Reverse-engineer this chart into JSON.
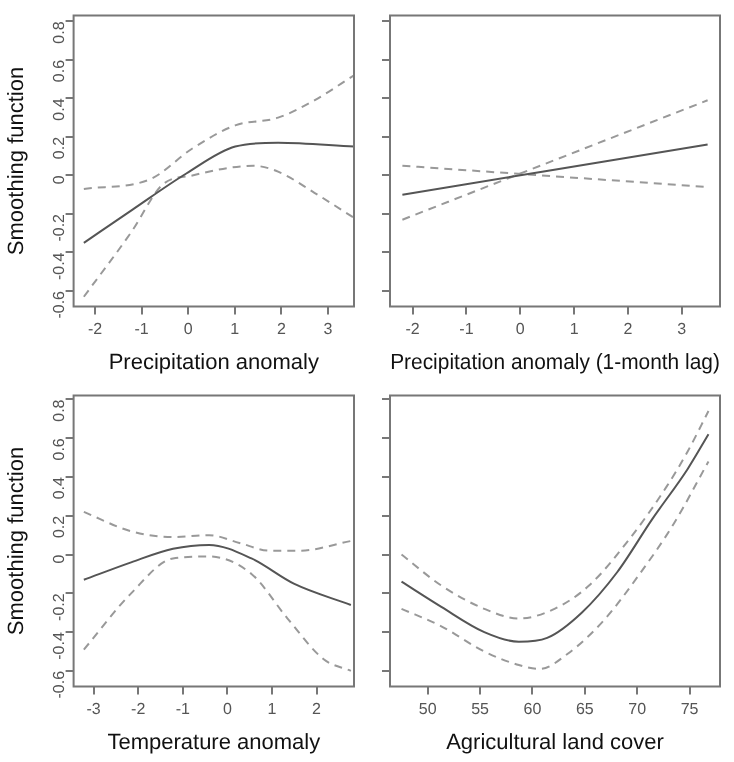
{
  "chart_data": [
    {
      "type": "line",
      "ylabel": "Smoothing function",
      "xlabel": "Precipitation anomaly",
      "xlim": [
        -2.46,
        3.56
      ],
      "xticks": [
        -2,
        -1,
        0,
        1,
        2,
        3
      ],
      "ylim": [
        -0.68,
        0.83
      ],
      "yticks": [
        -0.6,
        -0.4,
        -0.2,
        0.0,
        0.2,
        0.4,
        0.6,
        0.8
      ],
      "grid": false,
      "legend": false,
      "marker": "none",
      "series": [
        {
          "color": "#555555",
          "line_style": "solid",
          "x": [
            -2.24,
            -1.21,
            -0.04,
            1.01,
            1.93,
            3.56
          ],
          "values": [
            -0.35,
            -0.18,
            0.01,
            0.15,
            0.17,
            0.15
          ]
        },
        {
          "color": "#999999",
          "line_style": "dashed",
          "x": [
            -2.24,
            -0.82,
            0.09,
            1.01,
            1.93,
            2.71,
            3.56
          ],
          "values": [
            -0.07,
            -0.02,
            0.14,
            0.26,
            0.3,
            0.39,
            0.52
          ]
        },
        {
          "color": "#999999",
          "line_style": "dashed",
          "x": [
            -2.24,
            -1.21,
            -0.56,
            0.09,
            1.4,
            1.93,
            2.71,
            3.56
          ],
          "values": [
            -0.63,
            -0.29,
            -0.05,
            0.0,
            0.05,
            0.02,
            -0.09,
            -0.22
          ]
        }
      ]
    },
    {
      "type": "line",
      "xlabel": "Precipitation anomaly (1-month lag)",
      "xlim": [
        -2.42,
        3.71
      ],
      "xticks": [
        -2,
        -1,
        0,
        1,
        2,
        3
      ],
      "ylim": [
        -0.68,
        0.83
      ],
      "yticks": [
        -0.6,
        -0.4,
        -0.2,
        0.0,
        0.2,
        0.4,
        0.6,
        0.8
      ],
      "tick_labels": "x",
      "grid": false,
      "legend": false,
      "marker": "none",
      "series": [
        {
          "color": "#555555",
          "line_style": "solid",
          "x": [
            -2.19,
            3.48
          ],
          "values": [
            -0.1,
            0.16
          ]
        },
        {
          "color": "#999999",
          "line_style": "dashed",
          "x": [
            -2.19,
            3.48
          ],
          "values": [
            -0.23,
            0.39
          ]
        },
        {
          "color": "#999999",
          "line_style": "dashed",
          "x": [
            -2.19,
            3.48
          ],
          "values": [
            0.05,
            -0.06
          ]
        }
      ]
    },
    {
      "type": "line",
      "ylabel": "Smoothing function",
      "xlabel": "Temperature anomaly",
      "xlim": [
        -3.45,
        2.84
      ],
      "xticks": [
        -3,
        -2,
        -1,
        0,
        1,
        2
      ],
      "ylim": [
        -0.68,
        0.82
      ],
      "yticks": [
        -0.6,
        -0.4,
        -0.2,
        0.0,
        0.2,
        0.4,
        0.6,
        0.8
      ],
      "grid": false,
      "legend": false,
      "marker": "none",
      "series": [
        {
          "color": "#555555",
          "line_style": "solid",
          "x": [
            -3.22,
            -2.16,
            -1.22,
            -0.41,
            0.54,
            1.49,
            2.77
          ],
          "values": [
            -0.13,
            -0.04,
            0.03,
            0.05,
            -0.02,
            -0.15,
            -0.26
          ]
        },
        {
          "color": "#999999",
          "line_style": "dashed",
          "x": [
            -3.22,
            -2.16,
            -1.22,
            -0.41,
            0.27,
            0.95,
            1.62,
            2.77
          ],
          "values": [
            0.22,
            0.12,
            0.09,
            0.1,
            0.06,
            0.02,
            0.02,
            0.07
          ]
        },
        {
          "color": "#999999",
          "line_style": "dashed",
          "x": [
            -3.22,
            -2.16,
            -1.22,
            -0.41,
            0.54,
            1.35,
            2.16,
            2.77
          ],
          "values": [
            -0.49,
            -0.2,
            -0.02,
            -0.01,
            -0.1,
            -0.33,
            -0.54,
            -0.6
          ]
        }
      ]
    },
    {
      "type": "line",
      "xlabel": "Agricultural land cover",
      "xlim": [
        46.4,
        77.9
      ],
      "xticks": [
        50,
        55,
        60,
        65,
        70,
        75
      ],
      "ylim": [
        -0.68,
        0.82
      ],
      "yticks": [
        -0.6,
        -0.4,
        -0.2,
        0.0,
        0.2,
        0.4,
        0.6,
        0.8
      ],
      "tick_labels": "x",
      "grid": false,
      "legend": false,
      "marker": "none",
      "series": [
        {
          "color": "#555555",
          "line_style": "solid",
          "x": [
            47.5,
            51.3,
            55.4,
            58.7,
            61.4,
            64.7,
            68.1,
            71.4,
            74.8,
            76.8
          ],
          "values": [
            -0.14,
            -0.27,
            -0.4,
            -0.45,
            -0.43,
            -0.3,
            -0.09,
            0.18,
            0.44,
            0.62
          ]
        },
        {
          "color": "#999999",
          "line_style": "dashed",
          "x": [
            47.5,
            51.3,
            55.4,
            58.7,
            62.1,
            65.4,
            69.4,
            72.8,
            74.8,
            76.8
          ],
          "values": [
            0.0,
            -0.16,
            -0.28,
            -0.33,
            -0.28,
            -0.16,
            0.09,
            0.35,
            0.53,
            0.74
          ]
        },
        {
          "color": "#999999",
          "line_style": "dashed",
          "x": [
            47.5,
            51.3,
            55.4,
            58.7,
            60.7,
            63.4,
            66.8,
            70.1,
            73.5,
            76.8
          ],
          "values": [
            -0.28,
            -0.37,
            -0.5,
            -0.57,
            -0.59,
            -0.51,
            -0.34,
            -0.11,
            0.16,
            0.48
          ]
        }
      ]
    }
  ]
}
